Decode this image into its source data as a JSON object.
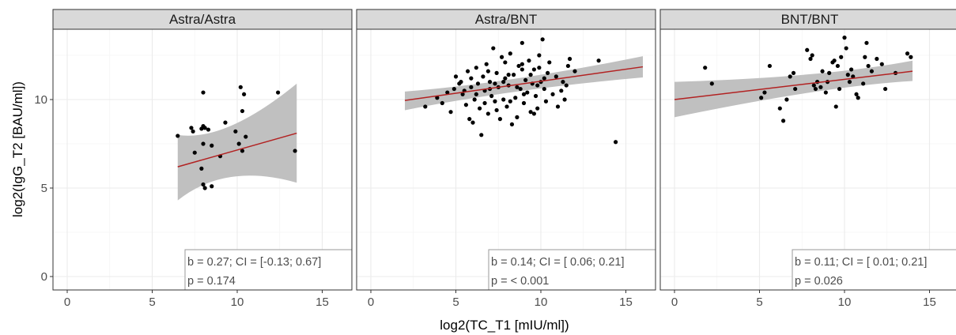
{
  "chart_data": {
    "type": "scatter",
    "xlabel": "log2(TC_T1 [mIU/ml])",
    "ylabel": "log2(IgG_T2 [BAU/ml])",
    "xlim": [
      -0.8,
      16.5
    ],
    "ylim": [
      -0.6,
      14.2
    ],
    "x_ticks": [
      0,
      5,
      10,
      15
    ],
    "y_ticks": [
      0,
      5,
      10
    ],
    "grid": true,
    "colors": {
      "point": "#000000",
      "fit_line": "#b22222",
      "ci_band": "#bdbdbd",
      "strip_fill": "#d9d9d9",
      "panel_border": "#333333",
      "grid_major": "#ebebeb",
      "grid_minor": "#f5f5f5"
    },
    "panels": [
      {
        "title": "Astra/Astra",
        "stat_line1": "b = 0.27; CI = [-0.13; 0.67]",
        "stat_line2": "p = 0.174",
        "fit": {
          "x0": 6.5,
          "y0": 6.2,
          "x1": 13.5,
          "y1": 8.1
        },
        "ci": {
          "x0": 6.5,
          "lo0": 4.3,
          "hi0": 8.0,
          "xm": 9.3,
          "lom": 6.45,
          "him": 7.6,
          "x1": 13.5,
          "lo1": 5.3,
          "hi1": 10.9
        },
        "points": [
          [
            6.5,
            7.95
          ],
          [
            7.3,
            8.4
          ],
          [
            7.4,
            8.2
          ],
          [
            7.5,
            7.0
          ],
          [
            7.9,
            8.35
          ],
          [
            8.0,
            8.5
          ],
          [
            8.1,
            8.4
          ],
          [
            8.3,
            8.3
          ],
          [
            8.0,
            10.4
          ],
          [
            8.0,
            7.5
          ],
          [
            8.5,
            7.4
          ],
          [
            7.9,
            6.1
          ],
          [
            8.0,
            5.2
          ],
          [
            8.1,
            5.0
          ],
          [
            8.5,
            5.1
          ],
          [
            9.0,
            6.8
          ],
          [
            9.3,
            8.7
          ],
          [
            9.9,
            8.2
          ],
          [
            10.1,
            7.5
          ],
          [
            10.2,
            10.7
          ],
          [
            10.4,
            10.3
          ],
          [
            10.3,
            9.35
          ],
          [
            10.3,
            7.1
          ],
          [
            10.5,
            7.9
          ],
          [
            12.4,
            10.4
          ],
          [
            13.4,
            7.1
          ]
        ]
      },
      {
        "title": "Astra/BNT",
        "stat_line1": "b = 0.14; CI = [ 0.06; 0.21]",
        "stat_line2": "p = < 0.001",
        "fit": {
          "x0": 2.0,
          "y0": 9.95,
          "x1": 16.0,
          "y1": 11.85
        },
        "ci": {
          "x0": 2.0,
          "lo0": 9.4,
          "hi0": 10.45,
          "xm": 8.3,
          "lom": 10.6,
          "him": 10.95,
          "x1": 16.0,
          "lo1": 11.25,
          "hi1": 12.45
        },
        "points": [
          [
            3.2,
            9.6
          ],
          [
            3.9,
            10.1
          ],
          [
            4.2,
            9.8
          ],
          [
            4.5,
            10.4
          ],
          [
            4.7,
            9.3
          ],
          [
            4.9,
            10.6
          ],
          [
            5.0,
            11.3
          ],
          [
            5.2,
            10.9
          ],
          [
            5.3,
            11.0
          ],
          [
            5.4,
            10.3
          ],
          [
            5.6,
            9.7
          ],
          [
            5.7,
            11.6
          ],
          [
            5.8,
            8.9
          ],
          [
            5.9,
            10.7
          ],
          [
            6.0,
            8.7
          ],
          [
            6.1,
            10.0
          ],
          [
            6.2,
            11.8
          ],
          [
            6.3,
            10.9
          ],
          [
            6.4,
            9.5
          ],
          [
            6.5,
            8.0
          ],
          [
            6.6,
            11.3
          ],
          [
            6.7,
            10.5
          ],
          [
            6.8,
            12.0
          ],
          [
            6.9,
            9.2
          ],
          [
            7.0,
            11.0
          ],
          [
            7.1,
            10.2
          ],
          [
            7.2,
            12.9
          ],
          [
            7.3,
            9.9
          ],
          [
            7.4,
            11.5
          ],
          [
            7.5,
            10.7
          ],
          [
            7.6,
            8.9
          ],
          [
            7.7,
            12.4
          ],
          [
            7.8,
            10.0
          ],
          [
            7.9,
            11.2
          ],
          [
            8.0,
            9.6
          ],
          [
            8.1,
            10.8
          ],
          [
            8.2,
            12.6
          ],
          [
            8.3,
            8.6
          ],
          [
            8.4,
            11.4
          ],
          [
            8.5,
            10.1
          ],
          [
            8.6,
            9.0
          ],
          [
            8.7,
            11.9
          ],
          [
            8.8,
            10.6
          ],
          [
            8.9,
            13.2
          ],
          [
            9.0,
            9.8
          ],
          [
            9.1,
            11.1
          ],
          [
            9.2,
            10.4
          ],
          [
            9.3,
            12.2
          ],
          [
            9.4,
            9.3
          ],
          [
            9.5,
            10.9
          ],
          [
            9.6,
            11.7
          ],
          [
            9.7,
            10.2
          ],
          [
            9.8,
            9.5
          ],
          [
            9.9,
            12.5
          ],
          [
            10.0,
            11.0
          ],
          [
            10.1,
            13.4
          ],
          [
            10.2,
            10.6
          ],
          [
            10.3,
            9.9
          ],
          [
            10.4,
            11.5
          ],
          [
            10.5,
            12.1
          ],
          [
            10.7,
            10.3
          ],
          [
            10.9,
            11.3
          ],
          [
            11.0,
            9.6
          ],
          [
            11.2,
            10.5
          ],
          [
            11.3,
            11.0
          ],
          [
            11.4,
            10.0
          ],
          [
            11.5,
            10.8
          ],
          [
            11.6,
            11.9
          ],
          [
            11.7,
            12.3
          ],
          [
            12.0,
            11.6
          ],
          [
            13.4,
            12.2
          ],
          [
            14.4,
            7.6
          ],
          [
            5.5,
            10.5
          ],
          [
            6.2,
            10.3
          ],
          [
            7.0,
            10.6
          ],
          [
            7.8,
            11.0
          ],
          [
            8.6,
            10.7
          ],
          [
            9.4,
            11.4
          ],
          [
            10.2,
            11.2
          ],
          [
            6.7,
            9.8
          ],
          [
            7.4,
            9.4
          ],
          [
            8.2,
            9.9
          ],
          [
            9.0,
            10.3
          ],
          [
            9.8,
            10.8
          ],
          [
            5.9,
            11.2
          ],
          [
            6.9,
            11.6
          ],
          [
            7.9,
            12.1
          ],
          [
            8.9,
            12.0
          ],
          [
            9.9,
            11.8
          ],
          [
            7.3,
            10.9
          ],
          [
            8.1,
            11.4
          ],
          [
            8.9,
            11.7
          ],
          [
            9.6,
            9.2
          ]
        ]
      },
      {
        "title": "BNT/BNT",
        "stat_line1": "b = 0.11; CI = [ 0.01; 0.21]",
        "stat_line2": "p = 0.026",
        "fit": {
          "x0": 0.0,
          "y0": 10.0,
          "x1": 14.0,
          "y1": 11.6
        },
        "ci": {
          "x0": 0.0,
          "lo0": 9.0,
          "hi0": 11.0,
          "xm": 8.8,
          "lom": 10.75,
          "him": 11.25,
          "x1": 14.0,
          "lo1": 11.05,
          "hi1": 12.2
        },
        "points": [
          [
            1.8,
            11.8
          ],
          [
            2.2,
            10.9
          ],
          [
            5.1,
            10.1
          ],
          [
            5.3,
            10.4
          ],
          [
            5.6,
            11.9
          ],
          [
            6.2,
            9.5
          ],
          [
            6.4,
            8.8
          ],
          [
            6.6,
            10.0
          ],
          [
            6.8,
            11.3
          ],
          [
            7.0,
            11.5
          ],
          [
            7.1,
            10.6
          ],
          [
            7.8,
            12.8
          ],
          [
            8.0,
            12.3
          ],
          [
            8.2,
            10.8
          ],
          [
            8.4,
            11.0
          ],
          [
            8.6,
            10.7
          ],
          [
            8.7,
            11.6
          ],
          [
            8.9,
            10.4
          ],
          [
            9.1,
            11.5
          ],
          [
            9.3,
            12.1
          ],
          [
            9.5,
            9.6
          ],
          [
            9.6,
            11.9
          ],
          [
            9.8,
            12.4
          ],
          [
            10.0,
            13.5
          ],
          [
            10.1,
            12.9
          ],
          [
            10.2,
            11.4
          ],
          [
            10.3,
            11.0
          ],
          [
            10.5,
            11.3
          ],
          [
            10.7,
            10.3
          ],
          [
            10.8,
            10.1
          ],
          [
            11.2,
            12.4
          ],
          [
            11.3,
            13.2
          ],
          [
            11.4,
            11.9
          ],
          [
            11.6,
            11.6
          ],
          [
            11.9,
            12.3
          ],
          [
            12.2,
            12.0
          ],
          [
            12.4,
            10.6
          ],
          [
            13.0,
            11.5
          ],
          [
            13.7,
            12.6
          ],
          [
            13.9,
            12.4
          ],
          [
            8.1,
            12.5
          ],
          [
            9.0,
            11.0
          ],
          [
            9.7,
            10.6
          ],
          [
            10.4,
            11.7
          ],
          [
            11.1,
            10.9
          ],
          [
            8.3,
            10.6
          ],
          [
            9.4,
            12.2
          ]
        ]
      }
    ]
  }
}
